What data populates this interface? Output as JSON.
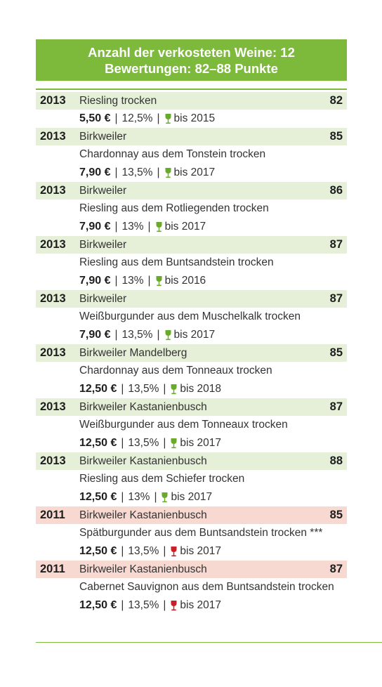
{
  "header": {
    "line1": "Anzahl der verkosteten Weine: 12",
    "line2": "Bewertungen: 82–88 Punkte"
  },
  "colors": {
    "accent_green": "#7dba3c",
    "row_green": "#e6f0d8",
    "row_red": "#f8d9d1",
    "glass_white": "#6aaa2a",
    "glass_red": "#c8202a"
  },
  "wines": [
    {
      "year": "2013",
      "name": "Riesling trocken",
      "desc": "",
      "score": "82",
      "price": "5,50 €",
      "alcohol": "12,5%",
      "drink": "bis 2015",
      "type": "white"
    },
    {
      "year": "2013",
      "name": "Birkweiler",
      "desc": "Chardonnay aus dem Tonstein trocken",
      "score": "85",
      "price": "7,90 €",
      "alcohol": "13,5%",
      "drink": "bis 2017",
      "type": "white"
    },
    {
      "year": "2013",
      "name": "Birkweiler",
      "desc": "Riesling aus dem Rotliegenden trocken",
      "score": "86",
      "price": "7,90 €",
      "alcohol": "13%",
      "drink": "bis 2017",
      "type": "white"
    },
    {
      "year": "2013",
      "name": "Birkweiler",
      "desc": "Riesling aus dem Buntsandstein trocken",
      "score": "87",
      "price": "7,90 €",
      "alcohol": "13%",
      "drink": "bis 2016",
      "type": "white"
    },
    {
      "year": "2013",
      "name": "Birkweiler",
      "desc": "Weißburgunder aus dem Muschelkalk trocken",
      "score": "87",
      "price": "7,90 €",
      "alcohol": "13,5%",
      "drink": "bis 2017",
      "type": "white"
    },
    {
      "year": "2013",
      "name": "Birkweiler Mandelberg",
      "desc": "Chardonnay aus dem Tonneaux trocken",
      "score": "85",
      "price": "12,50 €",
      "alcohol": "13,5%",
      "drink": "bis 2018",
      "type": "white"
    },
    {
      "year": "2013",
      "name": "Birkweiler Kastanienbusch",
      "desc": "Weißburgunder aus dem Tonneaux trocken",
      "score": "87",
      "price": "12,50 €",
      "alcohol": "13,5%",
      "drink": "bis 2017",
      "type": "white"
    },
    {
      "year": "2013",
      "name": "Birkweiler Kastanienbusch",
      "desc": "Riesling aus dem Schiefer trocken",
      "score": "88",
      "price": "12,50 €",
      "alcohol": "13%",
      "drink": "bis 2017",
      "type": "white"
    },
    {
      "year": "2011",
      "name": "Birkweiler Kastanienbusch",
      "desc": "Spätburgunder aus dem Buntsandstein trocken ***",
      "score": "85",
      "price": "12,50 €",
      "alcohol": "13,5%",
      "drink": "bis 2017",
      "type": "red"
    },
    {
      "year": "2011",
      "name": "Birkweiler Kastanienbusch",
      "desc": "Cabernet Sauvignon aus dem Buntsandstein trocken",
      "score": "87",
      "price": "12,50 €",
      "alcohol": "13,5%",
      "drink": "bis 2017",
      "type": "red"
    }
  ]
}
